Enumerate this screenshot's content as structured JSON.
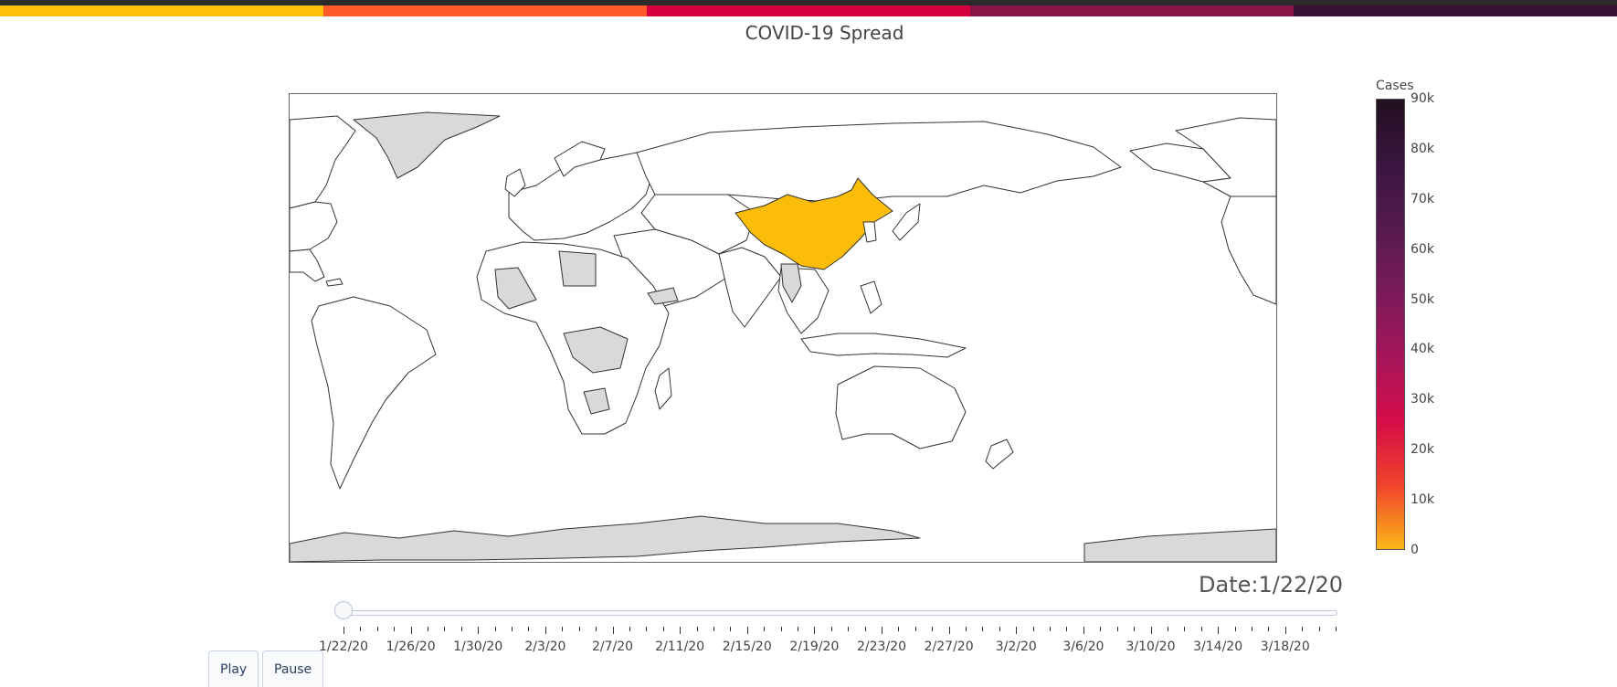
{
  "theme_stripes": [
    "#ffc107",
    "#ff5a2a",
    "#d5003c",
    "#8a1247",
    "#3a1236"
  ],
  "chart_data": {
    "type": "choropleth",
    "title": "COVID-19 Spread",
    "colorbar": {
      "title": "Cases",
      "range": [
        0,
        90000
      ],
      "ticks": [
        "0",
        "10k",
        "20k",
        "30k",
        "40k",
        "50k",
        "60k",
        "70k",
        "80k",
        "90k"
      ],
      "colorscale": [
        "#fbb61a",
        "#f0422a",
        "#d50d4a",
        "#a5155a",
        "#7a1a5a",
        "#551a50",
        "#3a1540",
        "#22101f"
      ]
    },
    "current_date_label": "Date:1/22/20",
    "highlighted": [
      {
        "country": "China",
        "cases": 548,
        "color": "#fbbd08"
      }
    ],
    "no_data_color": "#d9d9d9",
    "land_color": "#ffffff",
    "slider": {
      "labels": [
        "1/22/20",
        "1/26/20",
        "1/30/20",
        "2/3/20",
        "2/7/20",
        "2/11/20",
        "2/15/20",
        "2/19/20",
        "2/23/20",
        "2/27/20",
        "3/2/20",
        "3/6/20",
        "3/10/20",
        "3/14/20",
        "3/18/20"
      ],
      "total_steps": 60,
      "active_step": 0
    }
  },
  "controls": {
    "play_label": "Play",
    "pause_label": "Pause"
  }
}
